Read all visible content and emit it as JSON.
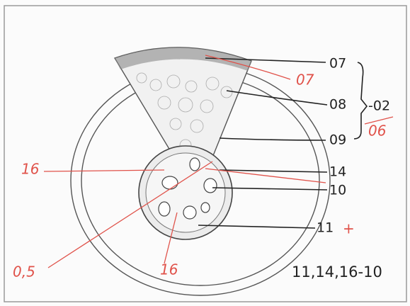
{
  "labels": [
    "07",
    "08",
    "09",
    "14",
    "10",
    "11"
  ],
  "group_label": "-02",
  "annotations": [
    "07",
    "06",
    "16",
    "0,5",
    "16",
    "+"
  ],
  "formula": "11,14,16-10"
}
